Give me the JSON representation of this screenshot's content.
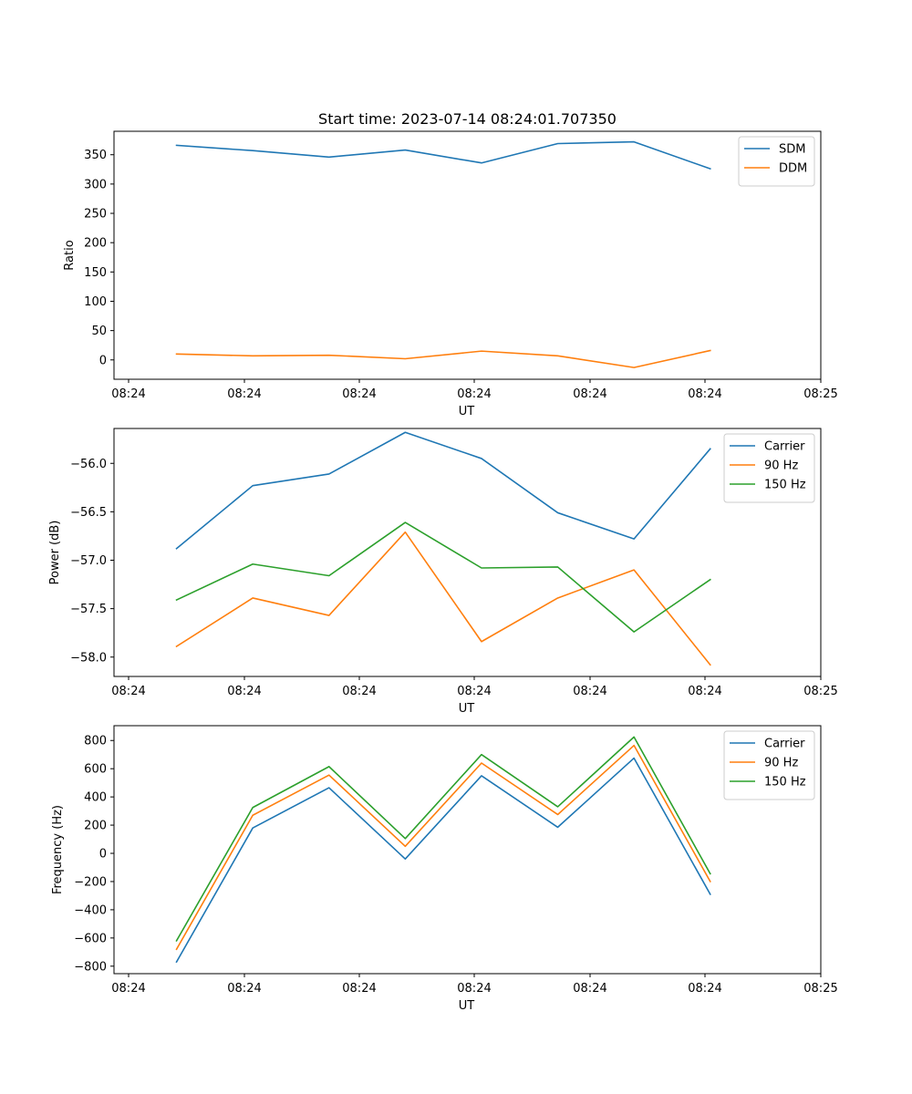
{
  "chart_data": [
    {
      "type": "line",
      "title": "Start time: 2023-07-14 08:24:01.707350",
      "xlabel": "UT",
      "ylabel": "Ratio",
      "x_tick_labels": [
        "08:24",
        "08:24",
        "08:24",
        "08:24",
        "08:24",
        "08:24",
        "08:25"
      ],
      "x": [
        1,
        2,
        3,
        4,
        5,
        6,
        7,
        8
      ],
      "xlim": [
        0.18,
        9.45
      ],
      "ylim": [
        -33,
        390
      ],
      "yticks": [
        0,
        50,
        100,
        150,
        200,
        250,
        300,
        350
      ],
      "legend_position": "top-right",
      "series": [
        {
          "name": "SDM",
          "color": "#1f77b4",
          "values": [
            366,
            357,
            346,
            358,
            336,
            369,
            372,
            326
          ]
        },
        {
          "name": "DDM",
          "color": "#ff7f0e",
          "values": [
            10,
            7,
            8,
            2,
            15,
            7,
            -13,
            16
          ]
        }
      ]
    },
    {
      "type": "line",
      "title": "",
      "xlabel": "UT",
      "ylabel": "Power (dB)",
      "x_tick_labels": [
        "08:24",
        "08:24",
        "08:24",
        "08:24",
        "08:24",
        "08:24",
        "08:25"
      ],
      "x": [
        1,
        2,
        3,
        4,
        5,
        6,
        7,
        8
      ],
      "xlim": [
        0.18,
        9.45
      ],
      "ylim": [
        -58.2,
        -55.64
      ],
      "yticks": [
        -58.0,
        -57.5,
        -57.0,
        -56.5,
        -56.0
      ],
      "legend_position": "top-right",
      "series": [
        {
          "name": "Carrier",
          "color": "#1f77b4",
          "values": [
            -56.88,
            -56.23,
            -56.11,
            -55.68,
            -55.95,
            -56.51,
            -56.78,
            -55.85
          ]
        },
        {
          "name": "90 Hz",
          "color": "#ff7f0e",
          "values": [
            -57.89,
            -57.39,
            -57.57,
            -56.71,
            -57.84,
            -57.39,
            -57.1,
            -58.08
          ]
        },
        {
          "name": "150 Hz",
          "color": "#2ca02c",
          "values": [
            -57.41,
            -57.04,
            -57.16,
            -56.61,
            -57.08,
            -57.07,
            -57.74,
            -57.2
          ]
        }
      ]
    },
    {
      "type": "line",
      "title": "",
      "xlabel": "UT",
      "ylabel": "Frequency (Hz)",
      "x_tick_labels": [
        "08:24",
        "08:24",
        "08:24",
        "08:24",
        "08:24",
        "08:24",
        "08:25"
      ],
      "x": [
        1,
        2,
        3,
        4,
        5,
        6,
        7,
        8
      ],
      "xlim": [
        0.18,
        9.45
      ],
      "ylim": [
        -853,
        905
      ],
      "yticks": [
        -800,
        -600,
        -400,
        -200,
        0,
        200,
        400,
        600,
        800
      ],
      "y_tick_labels": [
        "−800",
        "−600",
        "−400",
        "−200",
        "0",
        "200",
        "400",
        "600",
        "800"
      ],
      "legend_position": "top-right",
      "series": [
        {
          "name": "Carrier",
          "color": "#1f77b4",
          "values": [
            -770,
            180,
            465,
            -40,
            550,
            185,
            675,
            -290
          ]
        },
        {
          "name": "90 Hz",
          "color": "#ff7f0e",
          "values": [
            -680,
            270,
            555,
            50,
            640,
            275,
            765,
            -200
          ]
        },
        {
          "name": "150 Hz",
          "color": "#2ca02c",
          "values": [
            -620,
            325,
            615,
            105,
            700,
            330,
            825,
            -145
          ]
        }
      ]
    }
  ]
}
